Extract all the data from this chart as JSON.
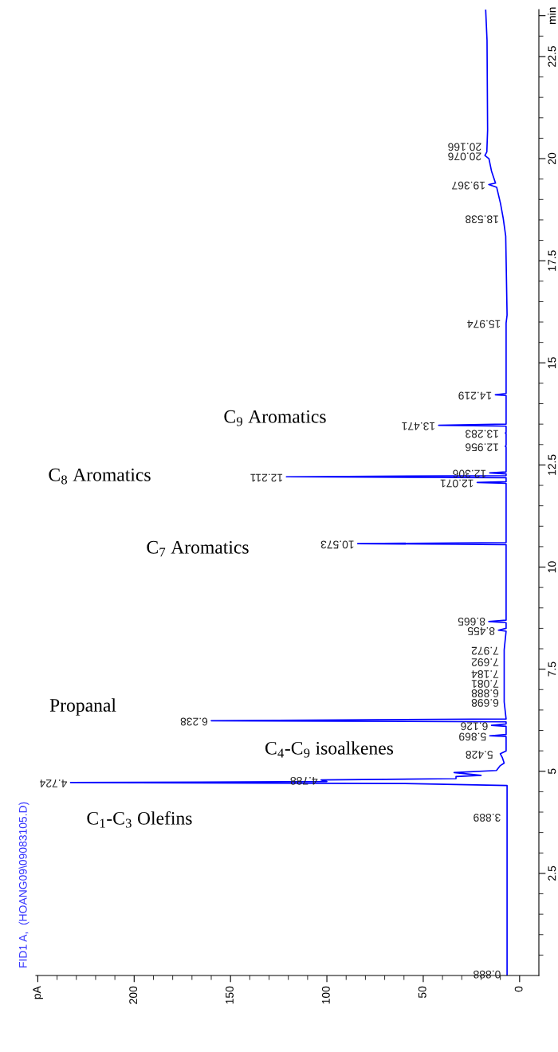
{
  "chart_data": {
    "type": "line",
    "title": "FID1 A,  (HOANG09\\09083105.D)",
    "xlim": [
      251,
      -10
    ],
    "xticks": [
      {
        "value": 250,
        "label": "pA"
      },
      200,
      150,
      100,
      50,
      0
    ],
    "ylim": [
      0,
      23.65
    ],
    "yticks": [
      2.5,
      5,
      7.5,
      10,
      12.5,
      15,
      17.5,
      20,
      22.5,
      {
        "value": 23.5,
        "label": "min"
      }
    ],
    "grid": false,
    "marker": "none",
    "line_style": "solid",
    "series": [
      {
        "color": "#0000ff",
        "values": [
          0,
          4.65,
          4.7,
          4.724,
          4.75,
          4.788,
          4.82,
          4.87,
          4.9,
          4.97,
          5.02,
          5.14,
          5.2,
          5.34,
          5.428,
          5.5,
          5.85,
          5.869,
          5.9,
          6.1,
          6.126,
          6.16,
          6.21,
          6.238,
          6.28,
          6.698,
          6.888,
          7.081,
          7.184,
          7.692,
          7.972,
          8.43,
          8.455,
          8.5,
          8.64,
          8.665,
          8.7,
          10.55,
          10.573,
          10.6,
          12.05,
          12.071,
          12.09,
          12.19,
          12.211,
          12.24,
          12.28,
          12.306,
          12.33,
          12.94,
          12.956,
          12.98,
          13.27,
          13.283,
          13.3,
          13.45,
          13.471,
          13.5,
          14.2,
          14.219,
          14.25,
          15.974,
          16.17,
          18.1,
          18.54,
          18.9,
          19.3,
          19.367,
          19.4,
          19.7,
          20.0,
          20.076,
          20.166,
          20.7,
          22.9,
          23.65
        ],
        "x": [
          6.5,
          6.5,
          60,
          233,
          100,
          103,
          33,
          33,
          20,
          34,
          12,
          10,
          8,
          9,
          10,
          7,
          7,
          15.5,
          7,
          7,
          14.6,
          7,
          7,
          160,
          7,
          8,
          8,
          8,
          8,
          8,
          8,
          7,
          11,
          7,
          7,
          16,
          7,
          7,
          84,
          7,
          7,
          22,
          7,
          7,
          121,
          7,
          7,
          15.5,
          7,
          7,
          7.4,
          7,
          7,
          7.4,
          7,
          7,
          42,
          7,
          7,
          12.6,
          7,
          7,
          6.5,
          7.2,
          8.5,
          9.9,
          11.9,
          16,
          12.5,
          14.6,
          15.9,
          18,
          17,
          16.6,
          16.9,
          17.6
        ]
      }
    ],
    "annotations": [
      {
        "text": "0.888",
        "y": 0.05,
        "x": 8
      },
      {
        "text": "3.889",
        "y": 3.889,
        "x": 8
      },
      {
        "text": "4.724",
        "y": 4.724,
        "x": 233
      },
      {
        "text": "4.788",
        "y": 4.788,
        "x": 103
      },
      {
        "text": "5.428",
        "y": 5.428,
        "x": 12
      },
      {
        "text": "5.869",
        "y": 5.869,
        "x": 15.5
      },
      {
        "text": "6.126",
        "y": 6.126,
        "x": 14.6
      },
      {
        "text": "6.238",
        "y": 6.238,
        "x": 160
      },
      {
        "text": "6.698",
        "y": 6.698,
        "x": 9
      },
      {
        "text": "6.888",
        "y": 6.888,
        "x": 9
      },
      {
        "text": "7.081",
        "y": 7.081,
        "x": 9
      },
      {
        "text": "7.184",
        "y": 7.184,
        "x": 9
      },
      {
        "text": "7.692",
        "y": 7.692,
        "x": 9
      },
      {
        "text": "7.972",
        "y": 7.972,
        "x": 9
      },
      {
        "text": "8.455",
        "y": 8.455,
        "x": 11
      },
      {
        "text": "8.665",
        "y": 8.665,
        "x": 16
      },
      {
        "text": "10.573",
        "y": 10.573,
        "x": 84
      },
      {
        "text": "12.071",
        "y": 12.071,
        "x": 22
      },
      {
        "text": "12.211",
        "y": 12.211,
        "x": 121
      },
      {
        "text": "12.306",
        "y": 12.306,
        "x": 15.5
      },
      {
        "text": "12.956",
        "y": 12.956,
        "x": 9
      },
      {
        "text": "13.283",
        "y": 13.283,
        "x": 9
      },
      {
        "text": "13.471",
        "y": 13.471,
        "x": 42
      },
      {
        "text": "14.219",
        "y": 14.219,
        "x": 12.6
      },
      {
        "text": "15.974",
        "y": 15.974,
        "x": 8
      },
      {
        "text": "18.538",
        "y": 18.538,
        "x": 9
      },
      {
        "text": "19.367",
        "y": 19.367,
        "x": 16
      },
      {
        "text": "20.076",
        "y": 20.076,
        "x": 18
      },
      {
        "text": "20.166",
        "y": 20.166,
        "x": 18
      },
      "C$_{9}$ Aromatics",
      "C$_{8}$ Aromatics",
      "C$_{7}$ Aromatics",
      "Propanal",
      "C$_{4}$-C$_{9}$ isoalkenes",
      "C$_{1}$-C$_{3}$ Olefins"
    ]
  }
}
